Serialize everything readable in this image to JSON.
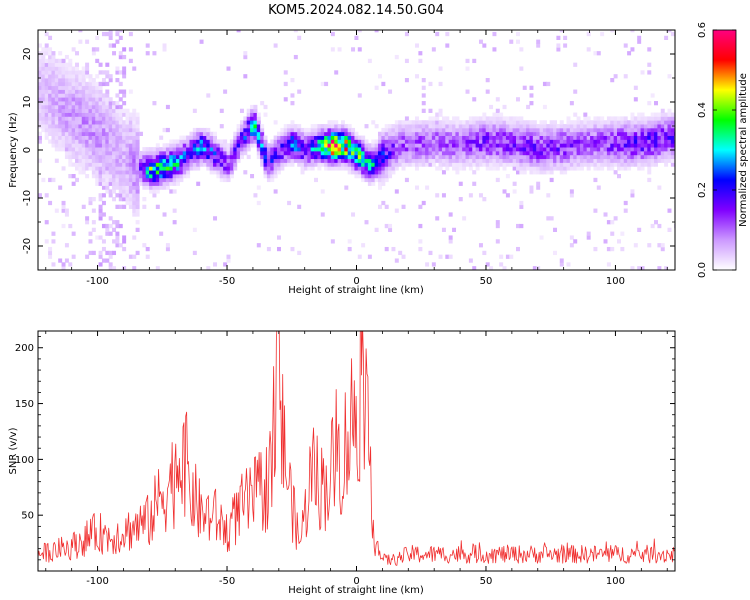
{
  "chart_data": [
    {
      "type": "heatmap",
      "title": "KOM5.2024.082.14.50.G04",
      "xlabel": "Height of straight line (km)",
      "ylabel": "Frequency (Hz)",
      "xlim": [
        -123,
        123
      ],
      "ylim": [
        -25,
        25
      ],
      "xticks": [
        -100,
        -50,
        0,
        50,
        100
      ],
      "yticks": [
        -20,
        -10,
        0,
        10,
        20
      ],
      "grid": false,
      "colorbar": {
        "label": "Normalized spectral amplitude",
        "range": [
          0,
          0.6
        ],
        "ticks": [
          "0.0",
          "0.2",
          "0.4",
          "0.6"
        ],
        "colormap": [
          "#ffffff",
          "#cc99ff",
          "#8000ff",
          "#0000ff",
          "#00ffff",
          "#00ff00",
          "#ffff00",
          "#ff0000",
          "#ff0080"
        ]
      },
      "ridge": {
        "x": [
          -123,
          -110,
          -100,
          -90,
          -85,
          -80,
          -75,
          -70,
          -65,
          -60,
          -55,
          -50,
          -45,
          -40,
          -35,
          -30,
          -25,
          -20,
          -15,
          -10,
          -5,
          0,
          5,
          10,
          15,
          20,
          30,
          40,
          50,
          60,
          70,
          80,
          90,
          100,
          110,
          123
        ],
        "y": [
          12,
          7,
          3,
          -2,
          -4,
          -4.5,
          -4,
          -3,
          -1,
          0.5,
          -1.5,
          -3.5,
          2,
          5,
          -3,
          -0.5,
          1,
          -0.5,
          0.5,
          0.5,
          0.5,
          -1.5,
          -3.5,
          -1.5,
          0.5,
          0.8,
          1.2,
          0.8,
          1.5,
          1.0,
          0,
          0.5,
          1.0,
          1.0,
          1.2,
          2.5
        ],
        "amplitude": [
          0.05,
          0.08,
          0.08,
          0.06,
          0.1,
          0.35,
          0.35,
          0.3,
          0.2,
          0.28,
          0.2,
          0.15,
          0.18,
          0.3,
          0.22,
          0.18,
          0.25,
          0.2,
          0.3,
          0.55,
          0.45,
          0.35,
          0.3,
          0.2,
          0.12,
          0.12,
          0.12,
          0.12,
          0.15,
          0.15,
          0.15,
          0.15,
          0.12,
          0.15,
          0.18,
          0.15
        ]
      }
    },
    {
      "type": "line",
      "xlabel": "Height of straight line (km)",
      "ylabel": "SNR (v/v)",
      "xlim": [
        -123,
        123
      ],
      "ylim": [
        0,
        215
      ],
      "xticks": [
        -100,
        -50,
        0,
        50,
        100
      ],
      "yticks": [
        50,
        100,
        150,
        200
      ],
      "grid": false,
      "color": "#f03030",
      "series": [
        {
          "x": [
            -123,
            -110,
            -100,
            -95,
            -90,
            -85,
            -80,
            -75,
            -70,
            -67,
            -65,
            -60,
            -55,
            -50,
            -45,
            -40,
            -35,
            -32,
            -30,
            -29,
            -28,
            -25,
            -22,
            -20,
            -17,
            -15,
            -12,
            -10,
            -5,
            0,
            2,
            3,
            5,
            7,
            10,
            15,
            20,
            40,
            60,
            80,
            100,
            123
          ],
          "y": [
            15,
            22,
            35,
            30,
            35,
            40,
            45,
            70,
            85,
            120,
            80,
            50,
            50,
            35,
            55,
            65,
            75,
            100,
            195,
            130,
            110,
            60,
            25,
            50,
            95,
            80,
            75,
            90,
            105,
            150,
            180,
            120,
            110,
            30,
            10,
            10,
            15,
            15,
            15,
            15,
            15,
            15
          ]
        }
      ]
    }
  ]
}
